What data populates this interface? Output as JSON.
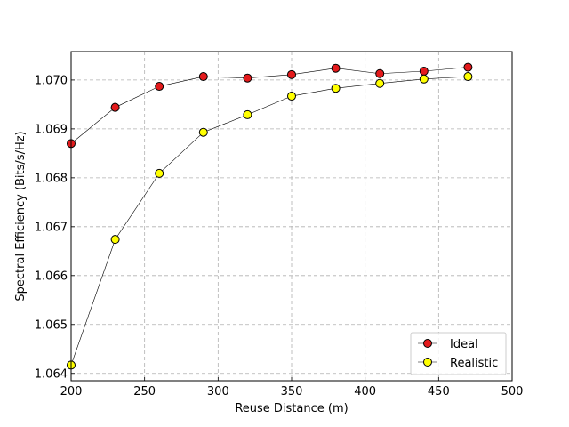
{
  "chart_data": {
    "type": "line",
    "xlabel": "Reuse Distance (m)",
    "ylabel": "Spectral Efficiency (Bits/s/Hz)",
    "xlim": [
      200,
      500
    ],
    "ylim": [
      1.06385,
      1.07058
    ],
    "xticks": [
      200,
      250,
      300,
      350,
      400,
      450,
      500
    ],
    "yticks": [
      1.064,
      1.065,
      1.066,
      1.067,
      1.068,
      1.069,
      1.07
    ],
    "xtick_labels": [
      "200",
      "250",
      "300",
      "350",
      "400",
      "450",
      "500"
    ],
    "ytick_labels": [
      "1.064",
      "1.065",
      "1.066",
      "1.067",
      "1.068",
      "1.069",
      "1.070"
    ],
    "grid": true,
    "legend_position": "bottom-right",
    "x": [
      200,
      230,
      260,
      290,
      320,
      350,
      380,
      410,
      440,
      470
    ],
    "series": [
      {
        "name": "Ideal",
        "color": "#e31a1c",
        "values": [
          1.0687,
          1.06944,
          1.06987,
          1.07007,
          1.07004,
          1.07011,
          1.07024,
          1.07013,
          1.07018,
          1.07026
        ]
      },
      {
        "name": "Realistic",
        "color": "#ffff00",
        "values": [
          1.06417,
          1.06674,
          1.06809,
          1.06893,
          1.06929,
          1.06967,
          1.06983,
          1.06993,
          1.07002,
          1.07007
        ]
      }
    ]
  }
}
